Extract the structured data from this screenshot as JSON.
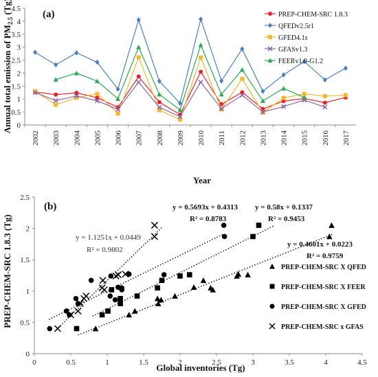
{
  "chart_data": [
    {
      "panel": "(a)",
      "type": "line",
      "xlabel": "Year",
      "ylabel": "Annual total emission of PM2.5 (Tg)",
      "ylim": [
        0,
        4.5
      ],
      "yticks": [
        "0",
        "0.5",
        "1",
        "1.5",
        "2",
        "2.5",
        "3",
        "3.5",
        "4",
        "4.5"
      ],
      "x": [
        "2002",
        "2003",
        "2004",
        "2005",
        "2006",
        "2007",
        "2008",
        "2009",
        "2010",
        "2011",
        "2012",
        "2013",
        "2014",
        "2015",
        "2016",
        "2017"
      ],
      "legend_position": "top-right",
      "series": [
        {
          "name": "PREP-CHEM-SRC 1.8.3",
          "color": "#e8232b",
          "marker": "circle",
          "values": [
            1.27,
            1.17,
            1.24,
            1.05,
            0.68,
            1.87,
            0.88,
            0.4,
            2.05,
            0.8,
            1.26,
            0.62,
            0.92,
            1.02,
            0.86,
            1.06
          ]
        },
        {
          "name": "QFEDv2.5r1",
          "color": "#4a7ec6",
          "marker": "diamond",
          "values": [
            2.8,
            2.32,
            2.78,
            2.42,
            1.38,
            4.05,
            1.69,
            0.84,
            4.08,
            1.7,
            2.93,
            1.3,
            1.93,
            2.45,
            1.74,
            2.19
          ]
        },
        {
          "name": "GFED4.1s",
          "color": "#f5b82e",
          "marker": "square",
          "values": [
            1.3,
            0.78,
            1.05,
            1.2,
            0.44,
            2.61,
            0.57,
            0.21,
            2.6,
            0.6,
            1.78,
            0.48,
            1.04,
            1.2,
            1.11,
            1.15
          ]
        },
        {
          "name": "GFASv1.3",
          "color": "#8a63a8",
          "marker": "x",
          "values": [
            1.25,
            0.94,
            1.12,
            0.93,
            0.6,
            1.65,
            0.68,
            0.32,
            1.65,
            0.63,
            1.15,
            0.5,
            0.71,
            0.96,
            0.69,
            null
          ]
        },
        {
          "name": "FEERv1.0-G1.2",
          "color": "#29a957",
          "marker": "triangle",
          "values": [
            null,
            1.75,
            2.0,
            1.69,
            1.01,
            3.0,
            1.18,
            0.58,
            3.08,
            1.18,
            2.13,
            0.93,
            1.41,
            1.06,
            null,
            null
          ]
        }
      ]
    },
    {
      "panel": "(b)",
      "type": "scatter",
      "xlabel": "Global inventories (Tg)",
      "ylabel": "PREP-CHEM-SRC 1.8.3 (Tg)",
      "xlim": [
        0,
        4.5
      ],
      "ylim": [
        0,
        2.5
      ],
      "xticks": [
        "0",
        "0.5",
        "1",
        "1.5",
        "2",
        "2.5",
        "3",
        "3.5",
        "4",
        "4.5"
      ],
      "yticks": [
        "0",
        "0.5",
        "1",
        "1.5",
        "2",
        "2.5"
      ],
      "legend_position": "right",
      "series": [
        {
          "name": "PREP-CHEM-SRC X QFED",
          "marker": "triangle",
          "fit": {
            "slope": 0.4601,
            "intercept": 0.0223,
            "x_range": [
              0.6,
              4.1
            ],
            "equation": "y = 0.4601x + 0.0223",
            "r2": "R² = 0.9759"
          },
          "points": [
            [
              0.84,
              0.4
            ],
            [
              1.3,
              0.62
            ],
            [
              1.38,
              0.68
            ],
            [
              1.69,
              0.88
            ],
            [
              1.7,
              0.8
            ],
            [
              1.74,
              0.86
            ],
            [
              1.93,
              0.92
            ],
            [
              2.19,
              1.06
            ],
            [
              2.32,
              1.17
            ],
            [
              2.42,
              1.05
            ],
            [
              2.45,
              1.02
            ],
            [
              2.78,
              1.24
            ],
            [
              2.8,
              1.27
            ],
            [
              2.93,
              1.26
            ],
            [
              4.05,
              1.87
            ],
            [
              4.08,
              2.05
            ]
          ]
        },
        {
          "name": "PREP-CHEM-SRC X FEER",
          "marker": "square",
          "fit": {
            "slope": 0.58,
            "intercept": 0.1337,
            "x_range": [
              0.8,
              3.3
            ],
            "equation": "y = 0.58x + 0.1337",
            "r2": "R² = 0.9453"
          },
          "points": [
            [
              0.58,
              0.4
            ],
            [
              0.93,
              0.62
            ],
            [
              1.01,
              0.68
            ],
            [
              1.06,
              1.02
            ],
            [
              1.18,
              0.88
            ],
            [
              1.18,
              0.8
            ],
            [
              1.41,
              0.92
            ],
            [
              1.69,
              1.05
            ],
            [
              1.75,
              1.17
            ],
            [
              2.0,
              1.24
            ],
            [
              2.13,
              1.26
            ],
            [
              3.0,
              1.87
            ],
            [
              3.08,
              2.05
            ]
          ]
        },
        {
          "name": "PREP-CHEM-SRC X GFED",
          "marker": "circle",
          "fit": {
            "slope": 0.5693,
            "intercept": 0.4313,
            "x_range": [
              0.2,
              2.6
            ],
            "equation": "y = 0.5693x + 0.4313",
            "r2": "R² = 0.8783"
          },
          "points": [
            [
              0.21,
              0.4
            ],
            [
              0.44,
              0.68
            ],
            [
              0.48,
              0.62
            ],
            [
              0.57,
              0.88
            ],
            [
              0.6,
              0.8
            ],
            [
              0.78,
              1.17
            ],
            [
              1.04,
              0.92
            ],
            [
              1.05,
              1.24
            ],
            [
              1.11,
              0.86
            ],
            [
              1.15,
              1.06
            ],
            [
              1.2,
              1.05
            ],
            [
              1.2,
              1.02
            ],
            [
              1.3,
              1.27
            ],
            [
              1.78,
              1.26
            ],
            [
              2.6,
              2.05
            ],
            [
              2.61,
              1.87
            ]
          ]
        },
        {
          "name": "PREP-CHEM-SRC x GFAS",
          "marker": "x",
          "fit": {
            "slope": 1.1251,
            "intercept": 0.0449,
            "x_range": [
              0.3,
              1.75
            ],
            "equation": "y = 1.1251x + 0.0449",
            "r2": "R² = 0.9802"
          },
          "points": [
            [
              0.32,
              0.4
            ],
            [
              0.5,
              0.62
            ],
            [
              0.6,
              0.68
            ],
            [
              0.63,
              0.8
            ],
            [
              0.68,
              0.88
            ],
            [
              0.71,
              0.92
            ],
            [
              0.93,
              1.05
            ],
            [
              0.94,
              1.17
            ],
            [
              0.96,
              1.02
            ],
            [
              1.12,
              1.24
            ],
            [
              1.15,
              1.26
            ],
            [
              1.25,
              1.27
            ],
            [
              1.65,
              1.87
            ],
            [
              1.65,
              2.05
            ]
          ]
        }
      ]
    }
  ]
}
